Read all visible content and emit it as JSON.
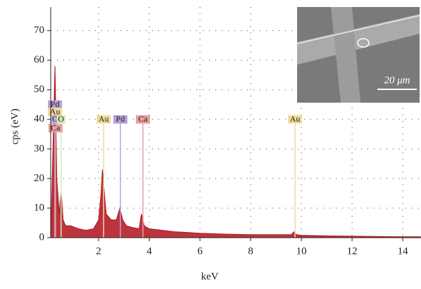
{
  "chart_data": {
    "type": "area",
    "xlabel": "keV",
    "ylabel": "cps (eV)",
    "xlim": [
      0.11,
      14.72
    ],
    "ylim": [
      0,
      78
    ],
    "xticks": [
      2,
      4,
      6,
      8,
      10,
      12,
      14
    ],
    "yticks": [
      0,
      10,
      20,
      30,
      40,
      50,
      60,
      70
    ],
    "grid": true,
    "color": "#b0101c",
    "x": [
      0.12,
      0.2,
      0.28,
      0.35,
      0.45,
      0.52,
      0.6,
      0.7,
      0.9,
      1.2,
      1.5,
      1.8,
      2.0,
      2.1,
      2.15,
      2.2,
      2.3,
      2.5,
      2.7,
      2.84,
      2.95,
      3.1,
      3.3,
      3.6,
      3.69,
      3.8,
      4.0,
      4.5,
      5,
      6,
      7,
      8,
      9,
      9.6,
      9.71,
      9.8,
      10,
      11,
      12,
      13,
      14,
      14.7
    ],
    "values": [
      2,
      30,
      58,
      20,
      8,
      16,
      6,
      4,
      4,
      3,
      2.5,
      3,
      6,
      15,
      23,
      18,
      8,
      6,
      6,
      10,
      6,
      4,
      3.5,
      3,
      8,
      4,
      3,
      2.5,
      2,
      1.5,
      1.2,
      1,
      1,
      1,
      2,
      1,
      0.8,
      0.6,
      0.5,
      0.4,
      0.3,
      0.3
    ],
    "annotations": [
      {
        "label": "Pd",
        "x": 0.28,
        "y": 45,
        "color": "#b8a0d8"
      },
      {
        "label": "Au",
        "x": 0.28,
        "y": 42.5,
        "color": "#f0dc9a"
      },
      {
        "label": "C",
        "x": 0.28,
        "y": 40,
        "color": "#c0a8e0"
      },
      {
        "label": "O",
        "x": 0.52,
        "y": 40,
        "color": "#d0ecb0"
      },
      {
        "label": "Ca",
        "x": 0.3,
        "y": 37,
        "color": "#e8a0a0"
      },
      {
        "label": "Au",
        "x": 2.2,
        "y": 40,
        "color": "#f0dc9a"
      },
      {
        "label": "Pd",
        "x": 2.86,
        "y": 40,
        "color": "#b8a0d8"
      },
      {
        "label": "Ca",
        "x": 3.75,
        "y": 40,
        "color": "#e8a0a0"
      },
      {
        "label": "Au",
        "x": 9.75,
        "y": 40,
        "color": "#f0dc9a"
      }
    ],
    "inset": {
      "scale_bar": "20 μm"
    }
  }
}
